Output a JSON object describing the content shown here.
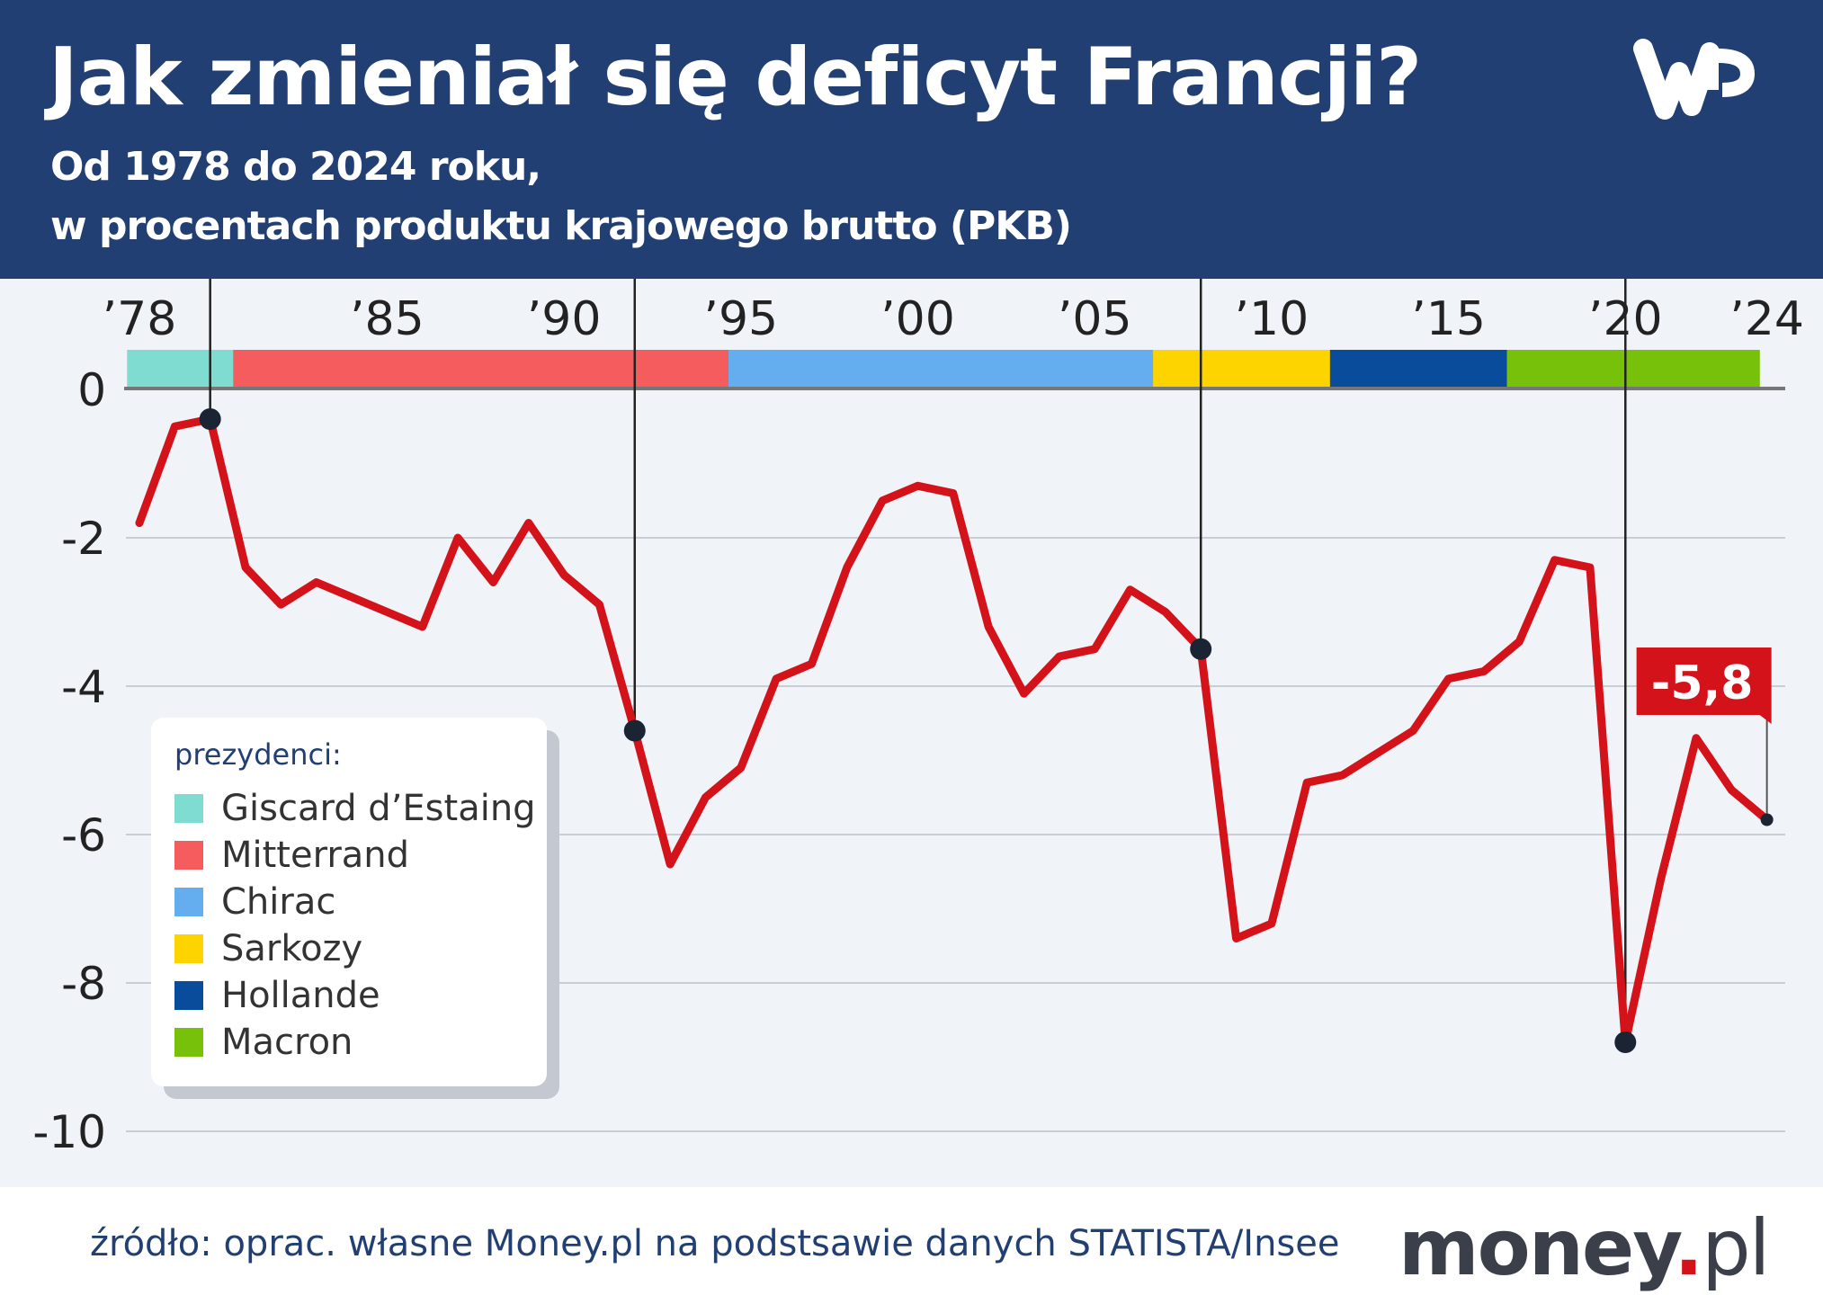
{
  "header": {
    "title": "Jak zmieniał się deficyt Francji?",
    "subtitle_line1": "Od 1978 do 2024 roku,",
    "subtitle_line2": "w procentach produktu krajowego brutto (PKB)",
    "logo": "WP"
  },
  "chart_data": {
    "type": "line",
    "title": "Jak zmieniał się deficyt Francji?",
    "x": [
      1978,
      1979,
      1980,
      1981,
      1982,
      1983,
      1984,
      1985,
      1986,
      1987,
      1988,
      1989,
      1990,
      1991,
      1992,
      1993,
      1994,
      1995,
      1996,
      1997,
      1998,
      1999,
      2000,
      2001,
      2002,
      2003,
      2004,
      2005,
      2006,
      2007,
      2008,
      2009,
      2010,
      2011,
      2012,
      2013,
      2014,
      2015,
      2016,
      2017,
      2018,
      2019,
      2020,
      2021,
      2022,
      2023,
      2024
    ],
    "values": [
      -1.8,
      -0.5,
      -0.4,
      -2.4,
      -2.9,
      -2.6,
      -2.8,
      -3.0,
      -3.2,
      -2.0,
      -2.6,
      -1.8,
      -2.5,
      -2.9,
      -4.6,
      -6.4,
      -5.5,
      -5.1,
      -3.9,
      -3.7,
      -2.4,
      -1.5,
      -1.3,
      -1.4,
      -3.2,
      -4.1,
      -3.6,
      -3.5,
      -2.7,
      -3.0,
      -3.5,
      -7.4,
      -7.2,
      -5.3,
      -5.2,
      -4.9,
      -4.6,
      -3.9,
      -3.8,
      -3.4,
      -2.3,
      -2.4,
      -8.8,
      -6.6,
      -4.7,
      -5.4,
      -5.8
    ],
    "ylim": [
      -10,
      0
    ],
    "yticks": [
      "0",
      "-2",
      "-4",
      "-6",
      "-8",
      "-10"
    ],
    "ytick_values": [
      0,
      -2,
      -4,
      -6,
      -8,
      -10
    ],
    "xticks": [
      "’78",
      "’85",
      "’90",
      "’95",
      "’00",
      "’05",
      "’10",
      "’15",
      "’20",
      "’24"
    ],
    "xtick_values": [
      1978,
      1985,
      1990,
      1995,
      2000,
      2005,
      2010,
      2015,
      2020,
      2024
    ],
    "grid": true,
    "line_color": "#d3121a",
    "marked_years": [
      1980,
      1992,
      2008,
      2020
    ],
    "annotation": {
      "year": 2024,
      "label": "-5,8"
    },
    "presidents": [
      {
        "name": "Giscard d’Estaing",
        "from": 1978,
        "to": 1981,
        "color": "#7fdcd0"
      },
      {
        "name": "Mitterrand",
        "from": 1981,
        "to": 1995,
        "color": "#f55c5e"
      },
      {
        "name": "Chirac",
        "from": 1995,
        "to": 2007,
        "color": "#64aef0"
      },
      {
        "name": "Sarkozy",
        "from": 2007,
        "to": 2012,
        "color": "#fdd400"
      },
      {
        "name": "Hollande",
        "from": 2012,
        "to": 2017,
        "color": "#0a4c9c"
      },
      {
        "name": "Macron",
        "from": 2017,
        "to": 2024,
        "color": "#78c10a"
      }
    ],
    "legend": {
      "title": "prezydenci:",
      "placement": "bottom-left"
    }
  },
  "footer": {
    "source": "źródło: oprac. własne Money.pl na podstsawie danych STATISTA/Insee",
    "brand_main": "money",
    "brand_dot": ".",
    "brand_tld": "pl"
  }
}
